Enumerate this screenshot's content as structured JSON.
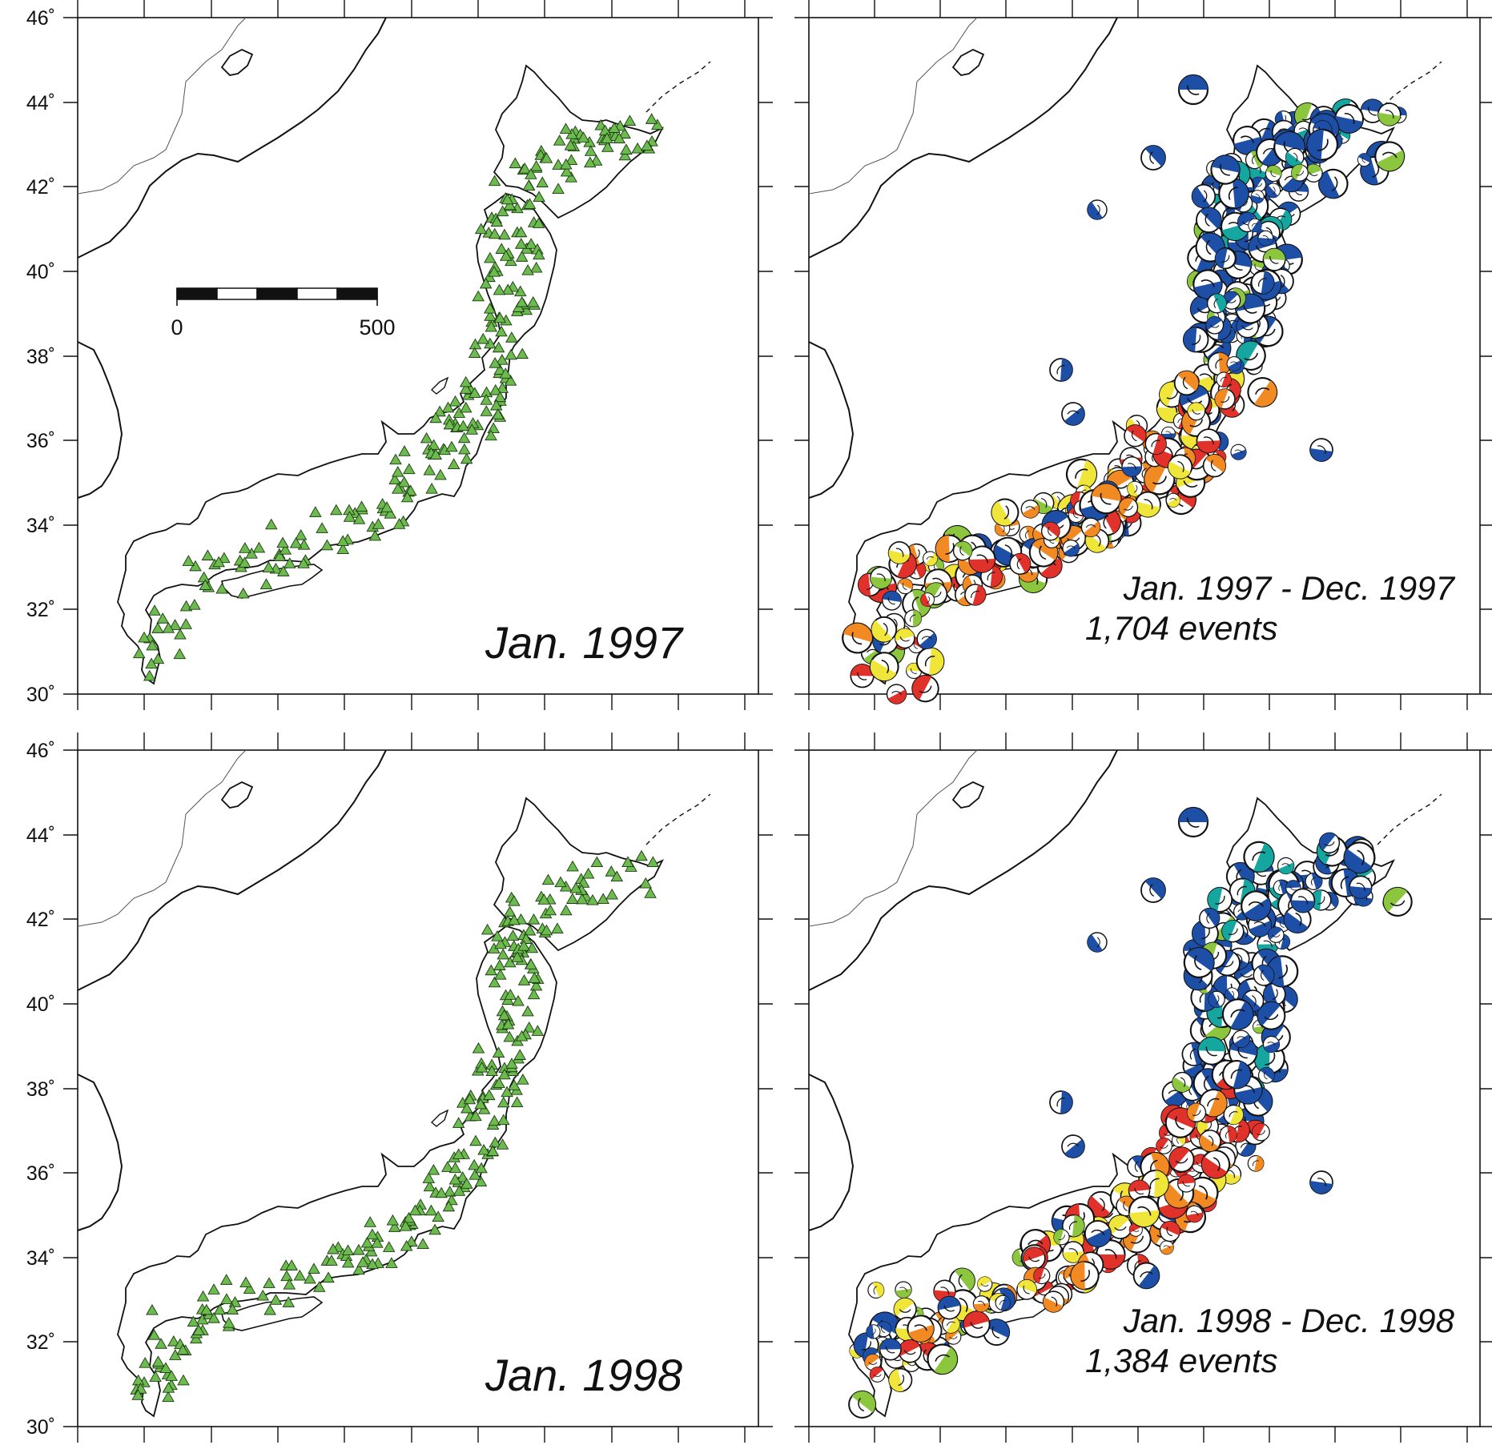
{
  "figure": {
    "lat_ticks": [
      "46˚",
      "44˚",
      "42˚",
      "40˚",
      "38˚",
      "36˚",
      "34˚",
      "32˚",
      "30˚"
    ],
    "colors": {
      "station": "#6dba4f",
      "reverse": "#1d4fa6",
      "normal": "#e0312a",
      "strike_slip_a": "#f0e63a",
      "strike_slip_b": "#8cc63f",
      "mixed": "#f28a24",
      "teal": "#16a6a0",
      "coast": "#111111",
      "border": "#555555"
    },
    "icons": {
      "station": "triangle-icon",
      "mechanism": "beachball-icon"
    }
  },
  "panels": [
    {
      "kind": "stations",
      "caption": "Jan. 1997",
      "scale_bar": {
        "labels": [
          "0",
          "500"
        ]
      }
    },
    {
      "kind": "mechanisms",
      "caption_line1": "Jan. 1997 - Dec. 1997",
      "caption_line2": "1,704 events",
      "event_count": 1704
    },
    {
      "kind": "stations",
      "caption": "Jan. 1998"
    },
    {
      "kind": "mechanisms",
      "caption_line1": "Jan. 1998 - Dec. 1998",
      "caption_line2": "1,384 events",
      "event_count": 1384
    }
  ]
}
